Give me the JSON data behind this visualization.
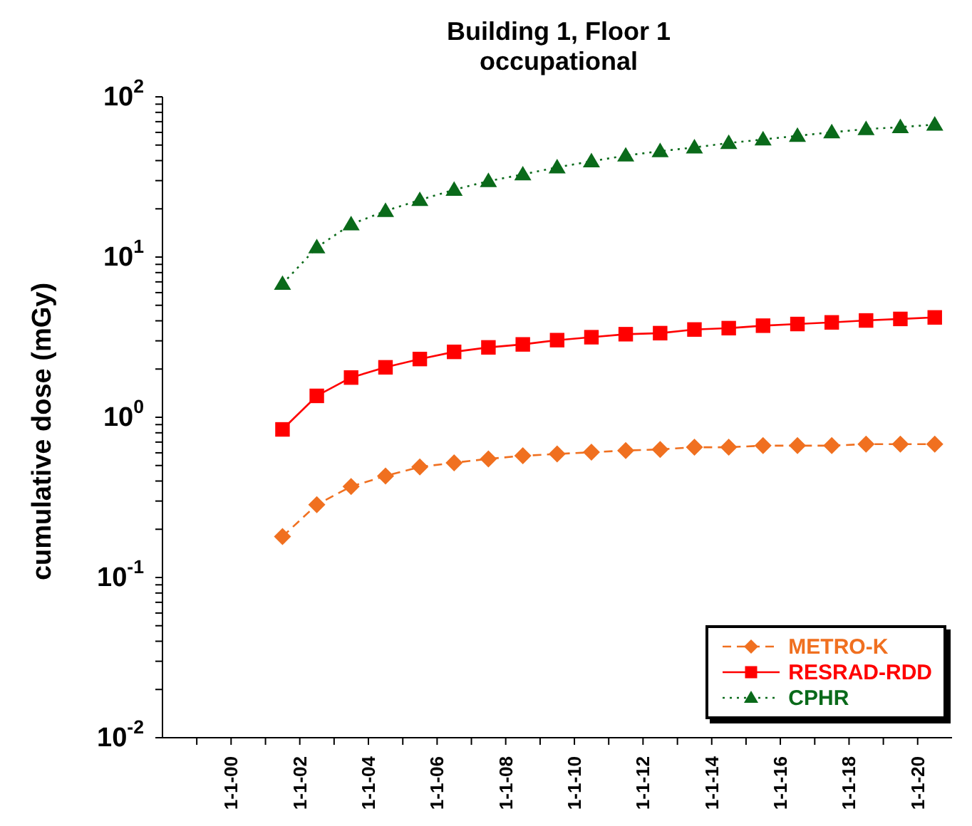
{
  "chart_data": {
    "type": "line",
    "title": "Building 1, Floor 1\noccupational",
    "ylabel": "cumulative dose (mGy)",
    "log": "y",
    "grid": false,
    "legend": "bottom right",
    "x": [
      "2001-07-01",
      "2002-07-01",
      "2003-07-01",
      "2004-07-01",
      "2005-07-01",
      "2006-07-01",
      "2007-07-01",
      "2008-07-01",
      "2009-07-01",
      "2010-07-01",
      "2011-07-01",
      "2012-07-01",
      "2013-07-01",
      "2014-07-01",
      "2015-07-01",
      "2016-07-01",
      "2017-07-01",
      "2018-07-01",
      "2019-07-01",
      "2020-07-01"
    ],
    "xlim": [
      "1998-01-01",
      "2021-01-01"
    ],
    "xticks": [
      {
        "value": "1999-01-01",
        "label": null
      },
      {
        "value": "2000-01-01",
        "label": "1-1-00"
      },
      {
        "value": "2001-01-01",
        "label": null
      },
      {
        "value": "2002-01-01",
        "label": "1-1-02"
      },
      {
        "value": "2003-01-01",
        "label": null
      },
      {
        "value": "2004-01-01",
        "label": "1-1-04"
      },
      {
        "value": "2005-01-01",
        "label": null
      },
      {
        "value": "2006-01-01",
        "label": "1-1-06"
      },
      {
        "value": "2007-01-01",
        "label": null
      },
      {
        "value": "2008-01-01",
        "label": "1-1-08"
      },
      {
        "value": "2009-01-01",
        "label": null
      },
      {
        "value": "2010-01-01",
        "label": "1-1-10"
      },
      {
        "value": "2011-01-01",
        "label": null
      },
      {
        "value": "2012-01-01",
        "label": "1-1-12"
      },
      {
        "value": "2013-01-01",
        "label": null
      },
      {
        "value": "2014-01-01",
        "label": "1-1-14"
      },
      {
        "value": "2015-01-01",
        "label": null
      },
      {
        "value": "2016-01-01",
        "label": "1-1-16"
      },
      {
        "value": "2017-01-01",
        "label": null
      },
      {
        "value": "2018-01-01",
        "label": "1-1-18"
      },
      {
        "value": "2019-01-01",
        "label": null
      },
      {
        "value": "2020-01-01",
        "label": "1-1-20"
      }
    ],
    "ylim": [
      0.01,
      100
    ],
    "yticks": [
      {
        "value": 0.01,
        "label": "10$^{-2}$"
      },
      {
        "value": 0.02,
        "label": null
      },
      {
        "value": 0.03,
        "label": null
      },
      {
        "value": 0.04,
        "label": null
      },
      {
        "value": 0.05,
        "label": null
      },
      {
        "value": 0.06,
        "label": null
      },
      {
        "value": 0.07,
        "label": null
      },
      {
        "value": 0.08,
        "label": null
      },
      {
        "value": 0.09,
        "label": null
      },
      {
        "value": 0.1,
        "label": "10$^{-1}$"
      },
      {
        "value": 0.2,
        "label": null
      },
      {
        "value": 0.3,
        "label": null
      },
      {
        "value": 0.4,
        "label": null
      },
      {
        "value": 0.5,
        "label": null
      },
      {
        "value": 0.6,
        "label": null
      },
      {
        "value": 0.7,
        "label": null
      },
      {
        "value": 0.8,
        "label": null
      },
      {
        "value": 0.9,
        "label": null
      },
      {
        "value": 1,
        "label": "10$^{0}$"
      },
      {
        "value": 2,
        "label": null
      },
      {
        "value": 3,
        "label": null
      },
      {
        "value": 4,
        "label": null
      },
      {
        "value": 5,
        "label": null
      },
      {
        "value": 6,
        "label": null
      },
      {
        "value": 7,
        "label": null
      },
      {
        "value": 8,
        "label": null
      },
      {
        "value": 9,
        "label": null
      },
      {
        "value": 10,
        "label": "10$^{1}$"
      },
      {
        "value": 20,
        "label": null
      },
      {
        "value": 30,
        "label": null
      },
      {
        "value": 40,
        "label": null
      },
      {
        "value": 50,
        "label": null
      },
      {
        "value": 60,
        "label": null
      },
      {
        "value": 70,
        "label": null
      },
      {
        "value": 80,
        "label": null
      },
      {
        "value": 90,
        "label": null
      },
      {
        "value": 100,
        "label": "10$^{2}$"
      }
    ],
    "series": [
      {
        "name": "METRO-K",
        "color": "#f07020",
        "marker": "diamond",
        "line_style": "dashed",
        "values": [
          0.18,
          0.285,
          0.37,
          0.43,
          0.49,
          0.52,
          0.55,
          0.575,
          0.59,
          0.605,
          0.62,
          0.63,
          0.65,
          0.65,
          0.665,
          0.665,
          0.665,
          0.68,
          0.68,
          0.68
        ]
      },
      {
        "name": "RESRAD-RDD",
        "color": "#ff0000",
        "marker": "square",
        "line_style": "solid",
        "values": [
          0.84,
          1.36,
          1.77,
          2.05,
          2.31,
          2.56,
          2.73,
          2.85,
          3.03,
          3.16,
          3.3,
          3.35,
          3.53,
          3.6,
          3.73,
          3.82,
          3.91,
          4.02,
          4.11,
          4.2
        ]
      },
      {
        "name": "CPHR",
        "color": "#0a6a1a",
        "marker": "triangle",
        "line_style": "dotted",
        "values": [
          6.8,
          11.5,
          16.0,
          19.4,
          22.7,
          26.3,
          29.8,
          32.8,
          36.3,
          39.6,
          43.0,
          45.8,
          48.3,
          51.5,
          54.2,
          57.1,
          60.1,
          62.9,
          64.7,
          67.1
        ]
      }
    ]
  }
}
